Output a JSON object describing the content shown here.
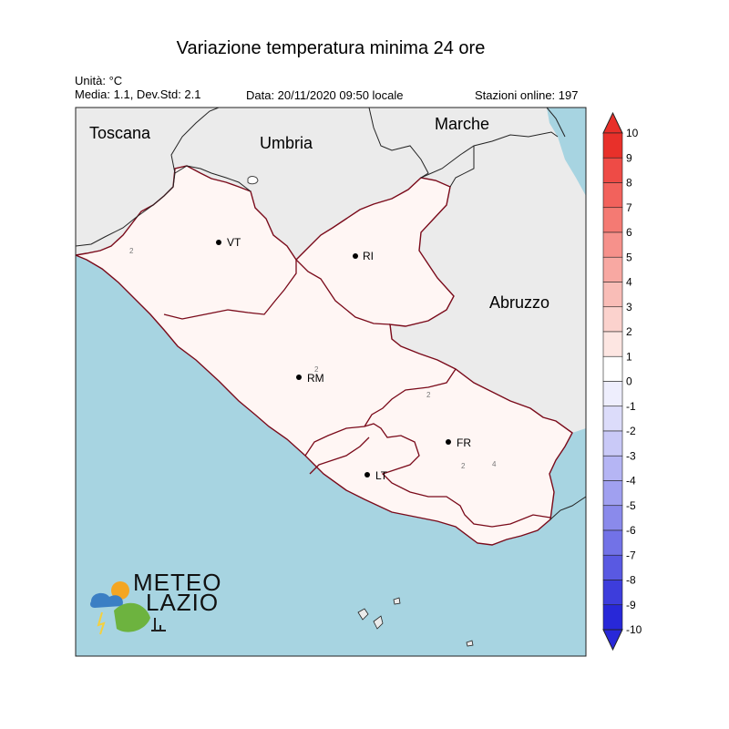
{
  "title": "Variazione temperatura minima 24 ore",
  "unit_line": "Unità: °C",
  "stats_line": "Media: 1.1, Dev.Std: 2.1",
  "date_line": "Data: 20/11/2020 09:50 locale",
  "stations_line": "Stazioni online: 197",
  "regions": {
    "toscana": "Toscana",
    "umbria": "Umbria",
    "marche": "Marche",
    "abruzzo": "Abruzzo"
  },
  "cities": {
    "vt": "VT",
    "ri": "RI",
    "rm": "RM",
    "fr": "FR",
    "lt": "LT"
  },
  "contour_labels": {
    "a": "2",
    "b": "2",
    "c": "4",
    "d": "2",
    "e": "2"
  },
  "colorbar": {
    "ticks": [
      "10",
      "9",
      "8",
      "7",
      "6",
      "5",
      "4",
      "3",
      "2",
      "1",
      "0",
      "-1",
      "-2",
      "-3",
      "-4",
      "-5",
      "-6",
      "-7",
      "-8",
      "-9",
      "-10"
    ],
    "colors_top_to_bottom": [
      "#e8302a",
      "#ee4b46",
      "#f2625c",
      "#f47a73",
      "#f6918b",
      "#f8a8a2",
      "#f9bdb7",
      "#fbd2cd",
      "#fde6e2",
      "#ffffff",
      "#eeeefd",
      "#dcdcfa",
      "#c9c9f7",
      "#b5b5f4",
      "#a0a0f0",
      "#8a8aeb",
      "#7272e7",
      "#5959e2",
      "#3d3ddc",
      "#2828d8"
    ]
  },
  "colors": {
    "sea": "#a7d4e1",
    "land_outside": "#ebebeb",
    "border": "#7a0a1a",
    "warm": "#f6918b",
    "cool": "#c9c9f7"
  },
  "logo": {
    "line1": "METEO",
    "line2": "LAZIO"
  }
}
